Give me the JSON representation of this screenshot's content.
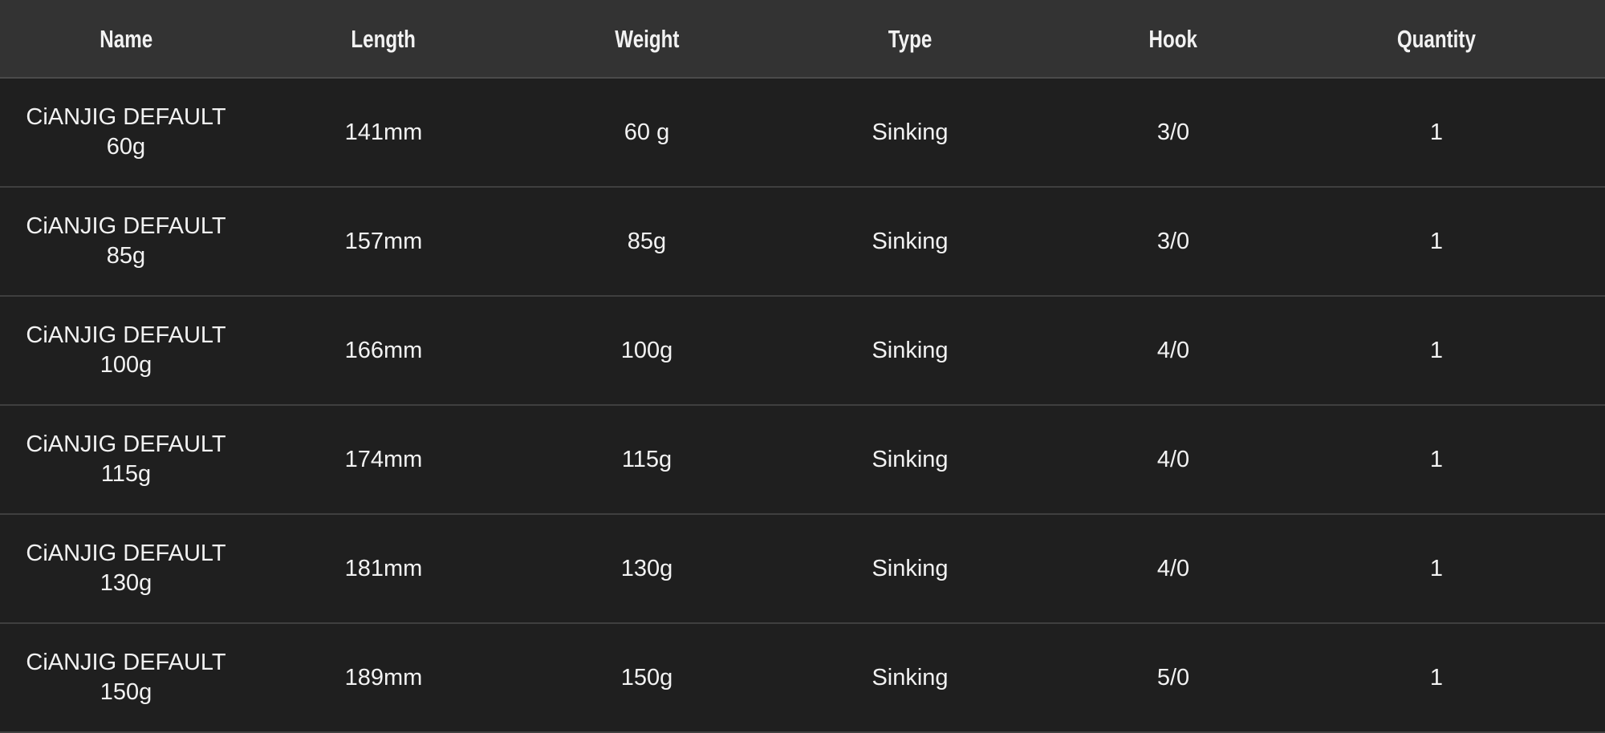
{
  "columns": [
    "Name",
    "Length",
    "Weight",
    "Type",
    "Hook",
    "Quantity"
  ],
  "rows": [
    {
      "name_line1": "CiANJIG DEFAULT",
      "name_line2": "60g",
      "length": "141mm",
      "weight": "60 g",
      "type": "Sinking",
      "hook": "3/0",
      "quantity": "1"
    },
    {
      "name_line1": "CiANJIG DEFAULT",
      "name_line2": "85g",
      "length": "157mm",
      "weight": "85g",
      "type": "Sinking",
      "hook": "3/0",
      "quantity": "1"
    },
    {
      "name_line1": "CiANJIG DEFAULT",
      "name_line2": "100g",
      "length": "166mm",
      "weight": "100g",
      "type": "Sinking",
      "hook": "4/0",
      "quantity": "1"
    },
    {
      "name_line1": "CiANJIG DEFAULT",
      "name_line2": "115g",
      "length": "174mm",
      "weight": "115g",
      "type": "Sinking",
      "hook": "4/0",
      "quantity": "1"
    },
    {
      "name_line1": "CiANJIG DEFAULT",
      "name_line2": "130g",
      "length": "181mm",
      "weight": "130g",
      "type": "Sinking",
      "hook": "4/0",
      "quantity": "1"
    },
    {
      "name_line1": "CiANJIG DEFAULT",
      "name_line2": "150g",
      "length": "189mm",
      "weight": "150g",
      "type": "Sinking",
      "hook": "5/0",
      "quantity": "1"
    }
  ]
}
